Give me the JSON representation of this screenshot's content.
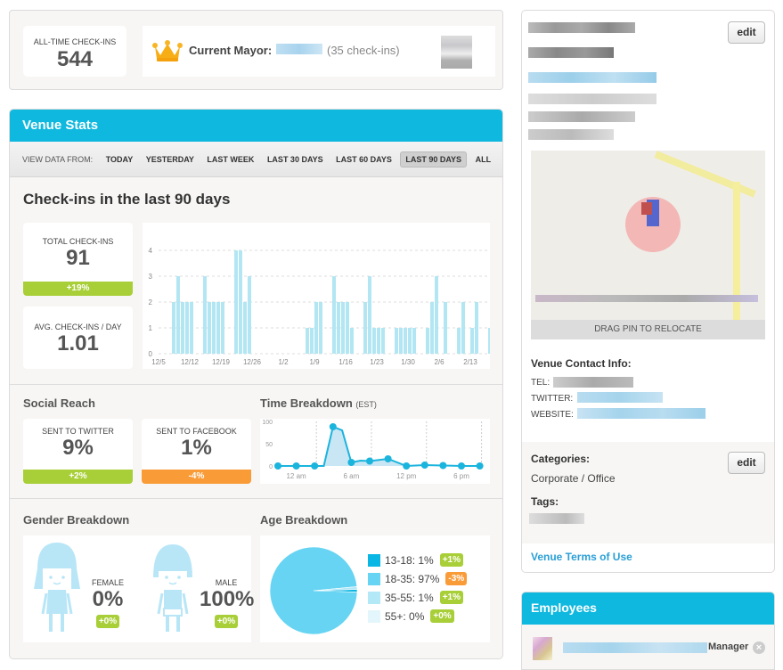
{
  "summary": {
    "alltime_label": "ALL-TIME CHECK-INS",
    "alltime_value": "544",
    "mayor_label": "Current Mayor:",
    "mayor_checkins": "(35 check-ins)"
  },
  "venue_stats": {
    "title": "Venue Stats",
    "filter_label": "VIEW DATA FROM:",
    "filters": [
      "TODAY",
      "YESTERDAY",
      "LAST WEEK",
      "LAST 30 DAYS",
      "LAST 60 DAYS",
      "LAST 90 DAYS",
      "ALL"
    ],
    "active_filter": "LAST 90 DAYS",
    "heading": "Check-ins in the last 90 days",
    "total_label": "TOTAL CHECK-INS",
    "total_value": "91",
    "total_change": "+19%",
    "avg_label": "AVG. CHECK-INS / DAY",
    "avg_value": "1.01",
    "social_title": "Social Reach",
    "twitter_label": "SENT TO TWITTER",
    "twitter_value": "9%",
    "twitter_change": "+2%",
    "facebook_label": "SENT TO FACEBOOK",
    "facebook_value": "1%",
    "facebook_change": "-4%",
    "time_title": "Time Breakdown",
    "time_tz": "(EST)",
    "gender_title": "Gender Breakdown",
    "female_label": "FEMALE",
    "female_value": "0%",
    "female_change": "+0%",
    "male_label": "MALE",
    "male_value": "100%",
    "male_change": "+0%",
    "age_title": "Age Breakdown"
  },
  "colors": {
    "accent": "#0fb8df",
    "bar": "#b3e6f3",
    "positive": "#a8cf38",
    "negative": "#f99c38",
    "link": "#2a9fd6"
  },
  "chart_data": [
    {
      "type": "bar",
      "title": "Check-ins in the last 90 days",
      "ylim": [
        0,
        4
      ],
      "yticks": [
        "0",
        "1",
        "2",
        "3",
        "4"
      ],
      "tick_labels": [
        "12/5",
        "12/12",
        "12/19",
        "12/26",
        "1/2",
        "1/9",
        "1/16",
        "1/23",
        "1/30",
        "2/6",
        "2/13"
      ],
      "start_date": "12/5",
      "values": [
        0,
        0,
        0,
        2,
        3,
        2,
        2,
        2,
        0,
        0,
        3,
        2,
        2,
        2,
        2,
        0,
        0,
        4,
        4,
        2,
        3,
        0,
        0,
        0,
        0,
        0,
        0,
        0,
        0,
        0,
        0,
        0,
        0,
        1,
        1,
        2,
        2,
        0,
        0,
        3,
        2,
        2,
        2,
        1,
        0,
        0,
        2,
        3,
        1,
        1,
        1,
        0,
        0,
        1,
        1,
        1,
        1,
        1,
        0,
        0,
        1,
        2,
        3,
        0,
        2,
        0,
        0,
        1,
        2,
        0,
        1,
        2,
        0,
        0,
        1,
        1
      ],
      "grid": true
    },
    {
      "type": "area",
      "title": "Time Breakdown (EST)",
      "ylim": [
        0,
        100
      ],
      "yticks": [
        "0",
        "50",
        "100"
      ],
      "xticks": [
        "12 am",
        "6 am",
        "12 pm",
        "6 pm"
      ],
      "points": [
        {
          "x": 0,
          "y": 0
        },
        {
          "x": 2,
          "y": 0
        },
        {
          "x": 4,
          "y": 0
        },
        {
          "x": 5,
          "y": 0
        },
        {
          "x": 6,
          "y": 88
        },
        {
          "x": 7,
          "y": 80
        },
        {
          "x": 8,
          "y": 8
        },
        {
          "x": 9,
          "y": 12
        },
        {
          "x": 10,
          "y": 11
        },
        {
          "x": 12,
          "y": 16
        },
        {
          "x": 14,
          "y": 0
        },
        {
          "x": 16,
          "y": 2
        },
        {
          "x": 18,
          "y": 1
        },
        {
          "x": 20,
          "y": 0
        },
        {
          "x": 22,
          "y": 0
        }
      ],
      "markers_at": [
        0,
        2,
        4,
        6,
        8,
        10,
        12,
        14,
        16,
        18,
        20,
        22
      ]
    },
    {
      "type": "pie",
      "title": "Age Breakdown",
      "slices": [
        {
          "label": "13-18",
          "value": 1,
          "display": "13-18: 1%",
          "change": "+1%",
          "change_dir": "positive",
          "color": "#0ab6e4"
        },
        {
          "label": "18-35",
          "value": 97,
          "display": "18-35: 97%",
          "change": "-3%",
          "change_dir": "negative",
          "color": "#66d4f2"
        },
        {
          "label": "35-55",
          "value": 1,
          "display": "35-55: 1%",
          "change": "+1%",
          "change_dir": "positive",
          "color": "#b3e8f7"
        },
        {
          "label": "55+",
          "value": 0,
          "display": "55+: 0%",
          "change": "+0%",
          "change_dir": "positive",
          "color": "#e3f6fc"
        }
      ]
    }
  ],
  "sidebar": {
    "edit_label": "edit",
    "map_caption": "DRAG PIN TO RELOCATE",
    "contact_title": "Venue Contact Info:",
    "tel_label": "TEL:",
    "twitter_label": "TWITTER:",
    "website_label": "WEBSITE:",
    "categories_title": "Categories:",
    "category": "Corporate / Office",
    "tags_title": "Tags:",
    "terms_link": "Venue Terms of Use"
  },
  "employees": {
    "title": "Employees",
    "role": "Manager"
  }
}
